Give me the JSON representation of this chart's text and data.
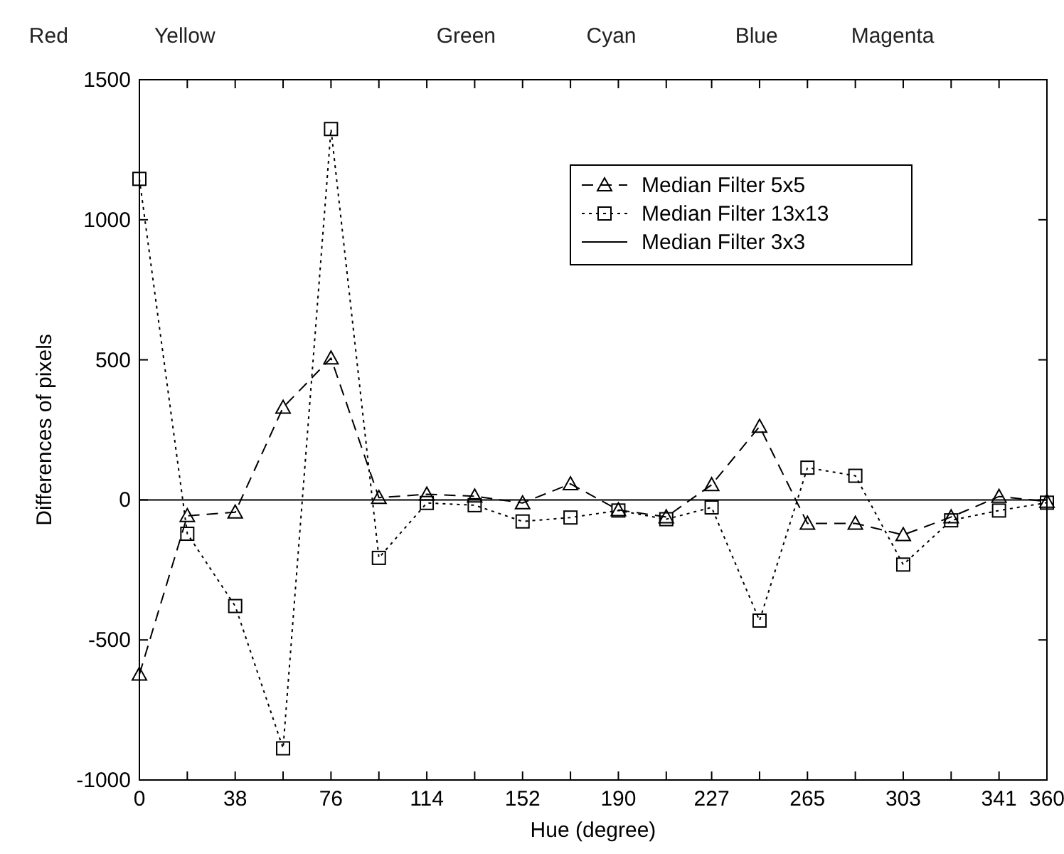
{
  "chart_data": {
    "type": "line",
    "xlabel": "Hue (degree)",
    "ylabel": "Differences of pixels",
    "annotations": [
      "Red",
      "Yellow",
      "Green",
      "Cyan",
      "Blue",
      "Magenta"
    ],
    "x": [
      0,
      19,
      38,
      57,
      76,
      95,
      114,
      133,
      152,
      171,
      190,
      209,
      227,
      246,
      265,
      284,
      303,
      322,
      341,
      360
    ],
    "xlim": [
      0,
      360
    ],
    "xticks": [
      0,
      {
        "value": 19,
        "label": null
      },
      38,
      {
        "value": 57,
        "label": null
      },
      76,
      {
        "value": 95,
        "label": null
      },
      114,
      {
        "value": 133,
        "label": null
      },
      152,
      {
        "value": 171,
        "label": null
      },
      190,
      {
        "value": 209,
        "label": null
      },
      227,
      {
        "value": 246,
        "label": null
      },
      265,
      {
        "value": 284,
        "label": null
      },
      303,
      {
        "value": 322,
        "label": null
      },
      341,
      360
    ],
    "ylim": [
      -1000,
      1500
    ],
    "yticks": [
      -1000,
      -500,
      0,
      500,
      1000,
      1500
    ],
    "grid": false,
    "legend": "top right",
    "series": [
      {
        "name": "Median Filter 5x5",
        "color": "#000000",
        "marker": "triangle",
        "line_style": "dashed",
        "values": [
          -623,
          -57,
          -44,
          330,
          506,
          8,
          20,
          13,
          -11,
          57,
          -36,
          -61,
          54,
          262,
          -84,
          -84,
          -125,
          -61,
          12,
          -6
        ]
      },
      {
        "name": "Median Filter 13x13",
        "color": "#000000",
        "marker": "square",
        "line_style": "dotted",
        "values": [
          1146,
          -121,
          -379,
          -887,
          1324,
          -207,
          -11,
          -19,
          -77,
          -63,
          -38,
          -69,
          -27,
          -431,
          115,
          86,
          -231,
          -73,
          -38,
          -10
        ]
      },
      {
        "name": "Median Filter 3x3",
        "color": "#000000",
        "marker": "none",
        "line_style": "solid",
        "values": [
          0,
          0,
          0,
          0,
          0,
          0,
          0,
          0,
          0,
          0,
          0,
          0,
          0,
          0,
          0,
          0,
          0,
          0,
          0,
          0
        ]
      }
    ]
  }
}
